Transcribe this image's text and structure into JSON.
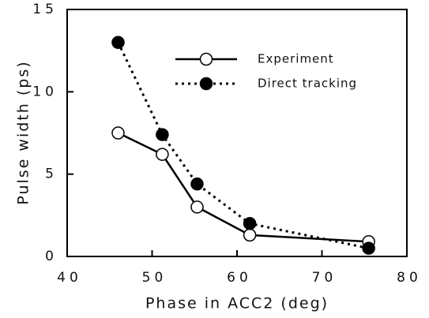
{
  "chart_data": {
    "type": "line",
    "x_label": "Phase in ACC2 (deg)",
    "y_label": "Pulse width (ps)",
    "x": [
      46,
      51.2,
      55.3,
      61.5,
      75.5
    ],
    "series": [
      {
        "name": "Experiment",
        "color": "#000000",
        "line_style": "solid",
        "marker_fill": "#ffffff",
        "values": [
          7.5,
          6.2,
          3.0,
          1.3,
          0.9
        ]
      },
      {
        "name": "Direct tracking",
        "color": "#000000",
        "line_style": "dotted",
        "marker_fill": "#000000",
        "values": [
          13.0,
          7.4,
          4.4,
          2.0,
          0.5
        ]
      }
    ],
    "xlim": [
      40,
      80
    ],
    "xticks": [
      40,
      50,
      60,
      70,
      80
    ],
    "ylim": [
      0,
      15
    ],
    "yticks": [
      0,
      5,
      10,
      15
    ],
    "legend": "upper right"
  }
}
